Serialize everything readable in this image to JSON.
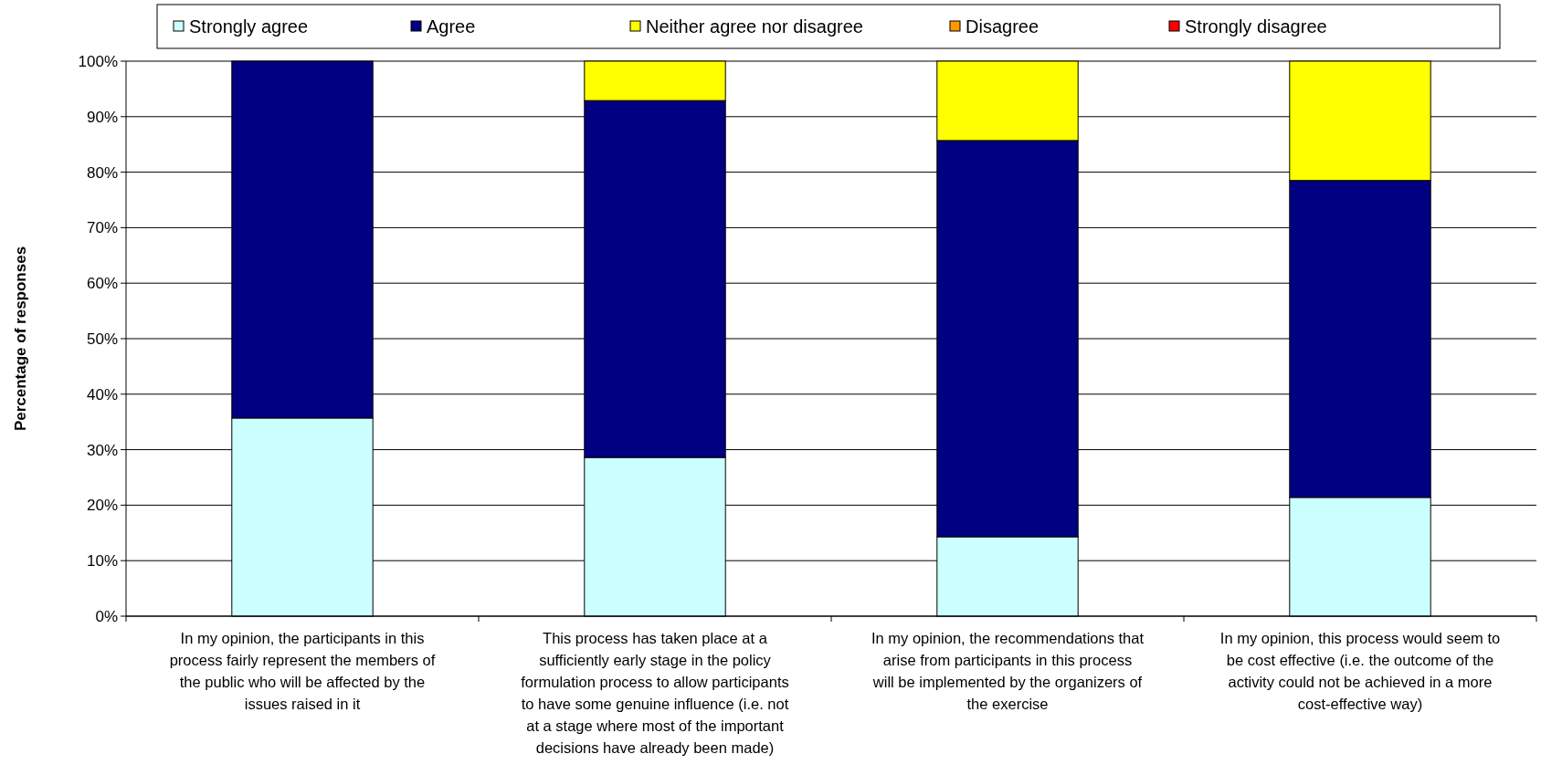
{
  "chart_data": {
    "type": "bar",
    "stacked": true,
    "ylabel": "Percentage of responses",
    "categories": [
      "In my opinion, the participants in this process fairly represent the members of the public who will be affected by the issues raised in it",
      "This process has taken place at a sufficiently early stage in the policy formulation process to allow participants to have some genuine influence (i.e. not at a stage where most of the important decisions have already been made)",
      "In my opinion, the recommendations that arise from participants in this process will be implemented by the organizers of the exercise",
      "In my opinion, this process would seem to be cost effective (i.e. the outcome of the activity could not be achieved in a more cost-effective way)"
    ],
    "series": [
      {
        "name": "Strongly agree",
        "color": "#ccffff",
        "values": [
          35.7,
          28.6,
          14.3,
          21.4
        ]
      },
      {
        "name": "Agree",
        "color": "#000080",
        "values": [
          64.3,
          64.3,
          71.4,
          57.1
        ]
      },
      {
        "name": "Neither agree nor disagree",
        "color": "#ffff00",
        "values": [
          0,
          7.1,
          14.3,
          21.5
        ]
      },
      {
        "name": "Disagree",
        "color": "#ff9900",
        "values": [
          0,
          0,
          0,
          0
        ]
      },
      {
        "name": "Strongly disagree",
        "color": "#ff0000",
        "values": [
          0,
          0,
          0,
          0
        ]
      }
    ],
    "ylim": [
      0,
      100
    ],
    "yticks": [
      {
        "value": 0,
        "label": "0%"
      },
      {
        "value": 10,
        "label": "10%"
      },
      {
        "value": 20,
        "label": "20%"
      },
      {
        "value": 30,
        "label": "30%"
      },
      {
        "value": 40,
        "label": "40%"
      },
      {
        "value": 50,
        "label": "50%"
      },
      {
        "value": 60,
        "label": "60%"
      },
      {
        "value": 70,
        "label": "70%"
      },
      {
        "value": 80,
        "label": "80%"
      },
      {
        "value": 90,
        "label": "90%"
      },
      {
        "value": 100,
        "label": "100%"
      }
    ],
    "grid": "y",
    "legend": "top"
  }
}
